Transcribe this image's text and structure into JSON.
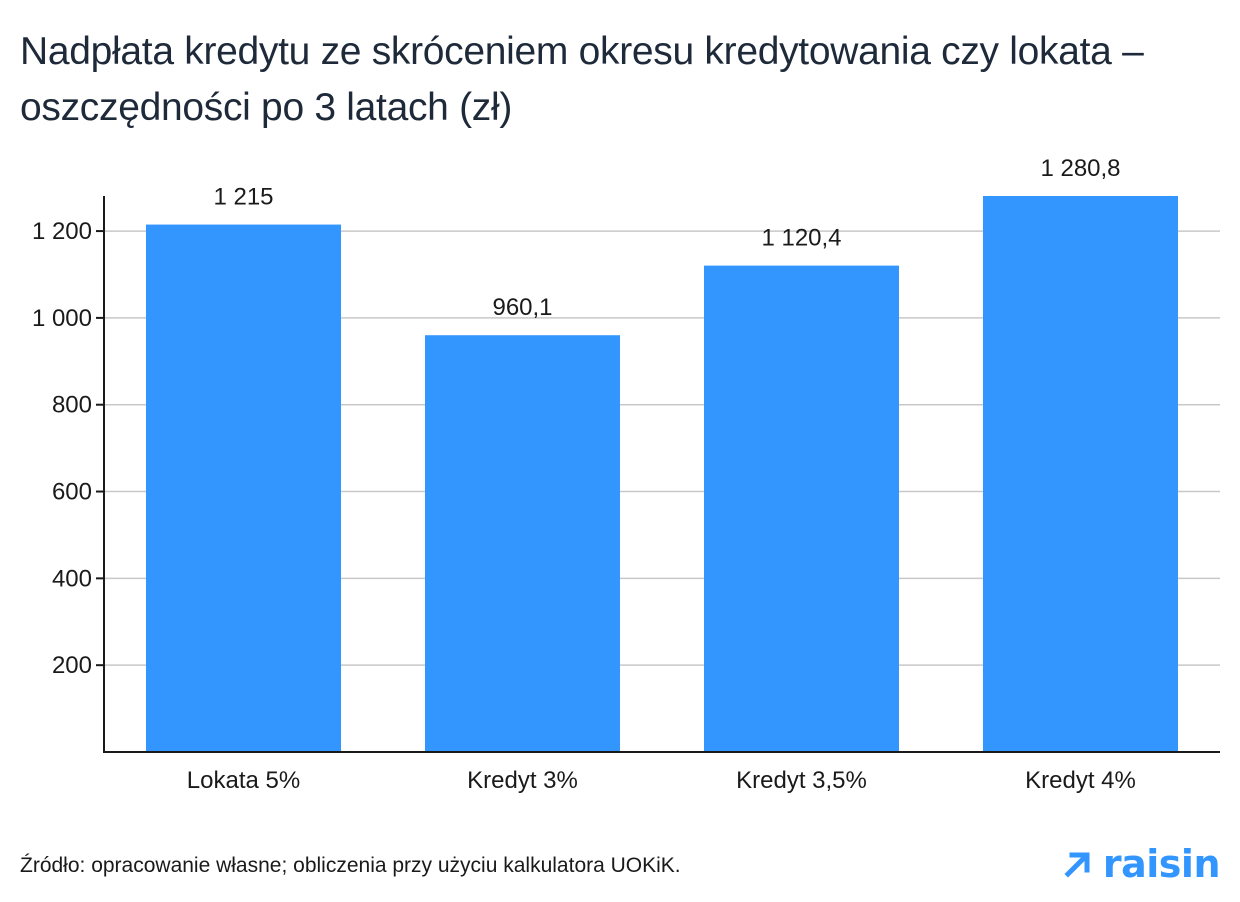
{
  "title": "Nadpłata kredytu ze skróceniem okresu kredytowania czy lokata – oszczędności po 3 latach (zł)",
  "source": "Źródło: opracowanie własne; obliczenia przy użyciu kalkulatora UOKiK.",
  "logo": {
    "text": "raisin",
    "icon": "arrow-up-right-icon"
  },
  "colors": {
    "bar": "#3396ff",
    "grid": "#c8c8c8",
    "axis": "#1a1a1a",
    "logo": "#3396ff"
  },
  "chart_data": {
    "type": "bar",
    "categories": [
      "Lokata 5%",
      "Kredyt 3%",
      "Kredyt 3,5%",
      "Kredyt 4%"
    ],
    "values": [
      1215,
      960.1,
      1120.4,
      1280.8
    ],
    "value_labels": [
      "1 215",
      "960,1",
      "1 120,4",
      "1 280,8"
    ],
    "yticks": [
      200,
      400,
      600,
      800,
      1000,
      1200
    ],
    "ytick_labels": [
      "200",
      "400",
      "600",
      "800",
      "1 000",
      "1 200"
    ],
    "ylim": [
      0,
      1280.8
    ],
    "grid": true,
    "xlabel": "",
    "ylabel": ""
  }
}
